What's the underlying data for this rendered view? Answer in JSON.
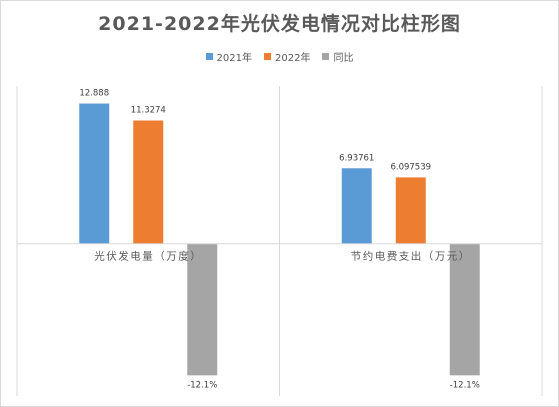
{
  "chart_data": {
    "type": "bar",
    "title": "2021-2022年光伏发电情况对比柱形图",
    "categories": [
      "光伏发电量（万度）",
      "节约电费支出（万元）"
    ],
    "series": [
      {
        "name": "2021年",
        "color": "#5b9bd5",
        "values": [
          12.888,
          6.93761
        ],
        "labels": [
          "12.888",
          "6.93761"
        ]
      },
      {
        "name": "2022年",
        "color": "#ed7d31",
        "values": [
          11.3274,
          6.097539
        ],
        "labels": [
          "11.3274",
          "6.097539"
        ]
      },
      {
        "name": "同比",
        "color": "#a5a5a5",
        "values": [
          -12.1,
          -12.1
        ],
        "labels": [
          "-12.1%",
          "-12.1%"
        ]
      }
    ],
    "ylim": [
      -14,
      14.5
    ],
    "legend_position": "top",
    "grid": false
  }
}
